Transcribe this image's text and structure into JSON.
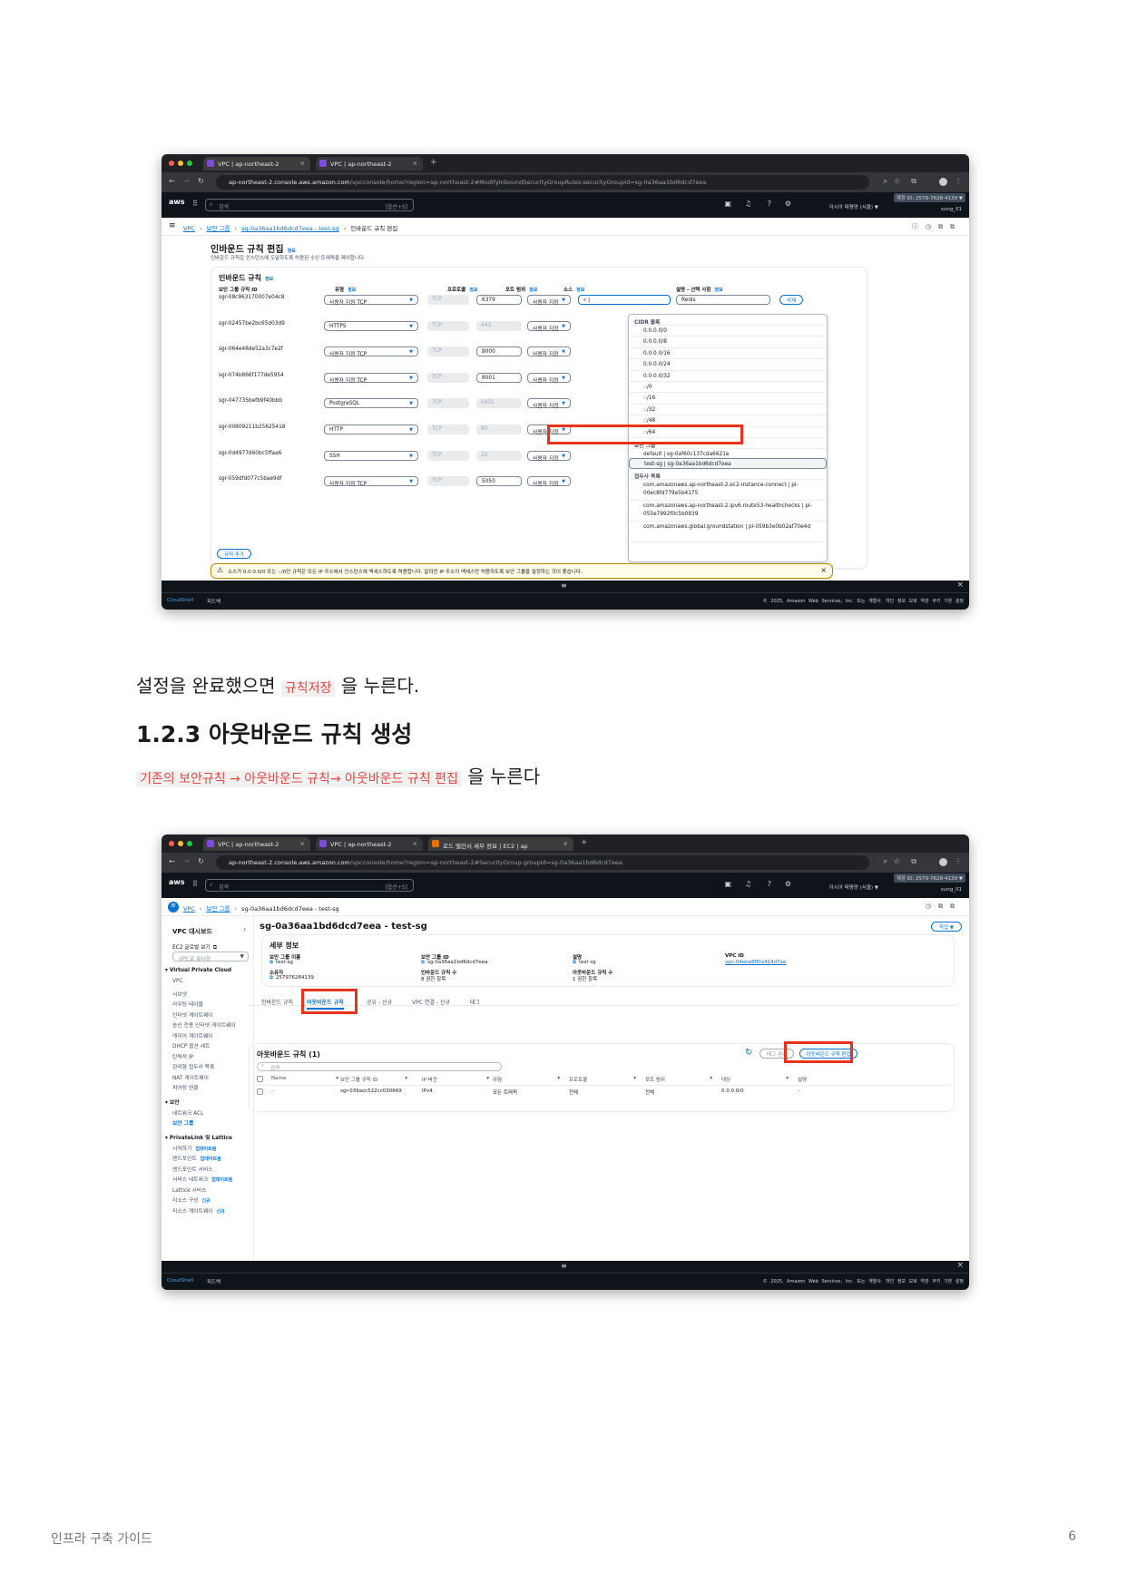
{
  "colors": {
    "accent": "#0972d3",
    "highlight_box": "#e8321e",
    "code_text": "#e04a4a",
    "aws_nav": "#0f141a"
  },
  "browser": {
    "tab_label": "VPC | ap-northeast-2",
    "tab3_label": "로드 밸런서 세부 정보 | EC2 | ap",
    "url1_host": "ap-northeast-2.console.aws.amazon.com",
    "url1_path": "/vpcconsole/home?region=ap-northeast-2#ModifyInboundSecurityGroupRules:securityGroupId=sg-0a36aa1bd6dcd7eea",
    "url2_path": "/vpcconsole/home?region=ap-northeast-2#SecurityGroup:groupId=sg-0a36aa1bd6dcd7eea"
  },
  "aws": {
    "logo": "aws",
    "search_placeholder": "검색",
    "search_shortcut": "[옵션+S]",
    "region": "아시아 태평양 (서울) ▼",
    "account": "계정 ID: 2579-7628-4139 ▼",
    "user": "sung_01",
    "cloudshell": "CloudShell",
    "feedback": "피드백",
    "copyright": "© 2025, Amazon Web Services, Inc. 또는 계열사.  개인 정보 보호  약관  쿠키 기본 설정"
  },
  "shot1": {
    "breadcrumb": [
      "VPC",
      "보안 그룹",
      "sg-0a36aa1bd6dcd7eea - test-sg",
      "인바운드 규칙 편집"
    ],
    "title": "인바운드 규칙 편집",
    "info": "정보",
    "subtitle": "인바운드 규칙은 인스턴스에 도달하도록 허용된 수신 트래픽을 제어합니다.",
    "panel_title": "인바운드 규칙",
    "headers": [
      "보안 그룹 규칙 ID",
      "유형",
      "프로토콜",
      "포트 범위",
      "소스",
      "설명 - 선택 사항"
    ],
    "rows": [
      {
        "id": "sgr-08c963170007e04c8",
        "type": "사용자 지정 TCP",
        "protocol": "TCP",
        "port": "6379",
        "port_editable": true,
        "source": "사용자 지정",
        "desc": "Redis"
      },
      {
        "id": "sgr-02457be2bc65d03d9",
        "type": "HTTPS",
        "protocol": "TCP",
        "port": "443",
        "port_editable": false,
        "source": "사용자 지정",
        "desc": ""
      },
      {
        "id": "sgr-064e48de52a3c7e2f",
        "type": "사용자 지정 TCP",
        "protocol": "TCP",
        "port": "8000",
        "port_editable": true,
        "source": "사용자 지정",
        "desc": ""
      },
      {
        "id": "sgr-074b866f177de5954",
        "type": "사용자 지정 TCP",
        "protocol": "TCP",
        "port": "8001",
        "port_editable": true,
        "source": "사용자 지정",
        "desc": ""
      },
      {
        "id": "sgr-047735befb9f40bbb",
        "type": "PostgreSQL",
        "protocol": "TCP",
        "port": "5432",
        "port_editable": false,
        "source": "사용자 지정",
        "desc": ""
      },
      {
        "id": "sgr-00809211b25625418",
        "type": "HTTP",
        "protocol": "TCP",
        "port": "80",
        "port_editable": false,
        "source": "사용자 지정",
        "desc": ""
      },
      {
        "id": "sgr-0d4977d60bc5ffaa6",
        "type": "SSH",
        "protocol": "TCP",
        "port": "22",
        "port_editable": false,
        "source": "사용자 지정",
        "desc": ""
      },
      {
        "id": "sgr-059dfd077c5bae9df",
        "type": "사용자 지정 TCP",
        "protocol": "TCP",
        "port": "5050",
        "port_editable": true,
        "source": "사용자 지정",
        "desc": ""
      }
    ],
    "delete_label": "삭제",
    "add_rule_label": "규칙 추가",
    "dropdown": {
      "cidr_group": "CIDR 블록",
      "cidr": [
        "0.0.0.0/0",
        "0.0.0.0/8",
        "0.0.0.0/16",
        "0.0.0.0/24",
        "0.0.0.0/32",
        "::/0",
        "::/16",
        "::/32",
        "::/48",
        "::/64"
      ],
      "sg_group": "보안 그룹",
      "sg": [
        "default | sg-0af60c137cda6621e",
        "test-sg | sg-0a36aa1bd6dcd7eea"
      ],
      "pl_group": "접두사 목록",
      "pl": [
        "com.amazonaws.ap-northeast-2.ec2-instance-connect | pl-00ec8fd779e5b4175",
        "com.amazonaws.ap-northeast-2.ipv6.route53-healthchecks | pl-055e7992f0c5b0839",
        "com.amazonaws.global.groundstation | pl-059b3e0b02af70e4d"
      ]
    },
    "warning": "소스가 0.0.0.0/0 또는 ::/0인 규칙은 모든 IP 주소에서 인스턴스에 액세스하도록 허용합니다. 알려진 IP 주소의 액세스만 허용하도록 보안 그룹을 설정하는 것이 좋습니다."
  },
  "doc": {
    "text1_before": "설정을 완료했으면 ",
    "text1_code": "규칙저장",
    "text1_after": " 을 누른다.",
    "heading": "1.2.3 아웃바운드 규칙 생성",
    "text2_code": "기존의 보안규칙 → 아웃바운드 규칙→ 아웃바운드 규칙 편집",
    "text2_after": " 을 누른다",
    "footer_title": "인프라 구축 가이드",
    "page_number": "6"
  },
  "shot2": {
    "breadcrumb": [
      "VPC",
      "보안 그룹",
      "sg-0a36aa1bd6dcd7eea - test-sg"
    ],
    "sidebar": {
      "title": "VPC 대시보드",
      "ec2_global": "EC2 글로벌 보기",
      "filter_placeholder": "VPC로 필터링",
      "sections": [
        {
          "title": "Virtual Private Cloud",
          "items": [
            {
              "label": "VPC"
            },
            {
              "label": "서브넷"
            },
            {
              "label": "라우팅 테이블"
            },
            {
              "label": "인터넷 게이트웨이"
            },
            {
              "label": "송신 전용 인터넷 게이트웨이"
            },
            {
              "label": "캐리어 게이트웨이"
            },
            {
              "label": "DHCP 옵션 세트"
            },
            {
              "label": "탄력적 IP"
            },
            {
              "label": "관리형 접두사 목록"
            },
            {
              "label": "NAT 게이트웨이"
            },
            {
              "label": "피어링 연결"
            }
          ]
        },
        {
          "title": "보안",
          "items": [
            {
              "label": "네트워크 ACL"
            },
            {
              "label": "보안 그룹",
              "active": true
            }
          ]
        },
        {
          "title": "PrivateLink 및 Lattice",
          "items": [
            {
              "label": "시작하기",
              "badge": "업데이트됨"
            },
            {
              "label": "엔드포인트",
              "badge": "업데이트됨"
            },
            {
              "label": "엔드포인트 서비스"
            },
            {
              "label": "서비스 네트워크",
              "badge": "업데이트됨"
            },
            {
              "label": "Lattice 서비스"
            },
            {
              "label": "리소스 구성",
              "badge": "신규"
            },
            {
              "label": "리소스 게이트웨이",
              "badge": "신규"
            }
          ]
        }
      ]
    },
    "title": "sg-0a36aa1bd6dcd7eea - test-sg",
    "actions_label": "작업 ▼",
    "details_title": "세부 정보",
    "details": [
      {
        "label": "보안 그룹 이름",
        "value": "test-sg"
      },
      {
        "label": "보안 그룹 ID",
        "value": "sg-0a36aa1bd6dcd7eea"
      },
      {
        "label": "설명",
        "value": "test sg"
      },
      {
        "label": "VPC ID",
        "value": "vpc-04abe8ff0a414d7ae"
      },
      {
        "label": "소유자",
        "value": "257976284139"
      },
      {
        "label": "인바운드 규칙 수",
        "value": "8 권한 항목"
      },
      {
        "label": "아웃바운드 규칙 수",
        "value": "1 권한 항목"
      }
    ],
    "tabs": [
      "인바운드 규칙",
      "아웃바운드 규칙",
      "공유 - 신규",
      "VPC 연결 - 신규",
      "태그"
    ],
    "outbound_title": "아웃바운드 규칙 (1)",
    "manage_tags": "태그 관리",
    "edit_outbound": "아웃바운드 규칙 편집",
    "search_placeholder": "검색",
    "columns": [
      "Name",
      "보안 그룹 규칙 ID",
      "IP 버전",
      "유형",
      "프로토콜",
      "포트 범위",
      "대상",
      "설명"
    ],
    "row": [
      "-",
      "sgr-039acc522cc030669",
      "IPv4",
      "모든 트래픽",
      "전체",
      "전체",
      "0.0.0.0/0",
      "-"
    ]
  }
}
